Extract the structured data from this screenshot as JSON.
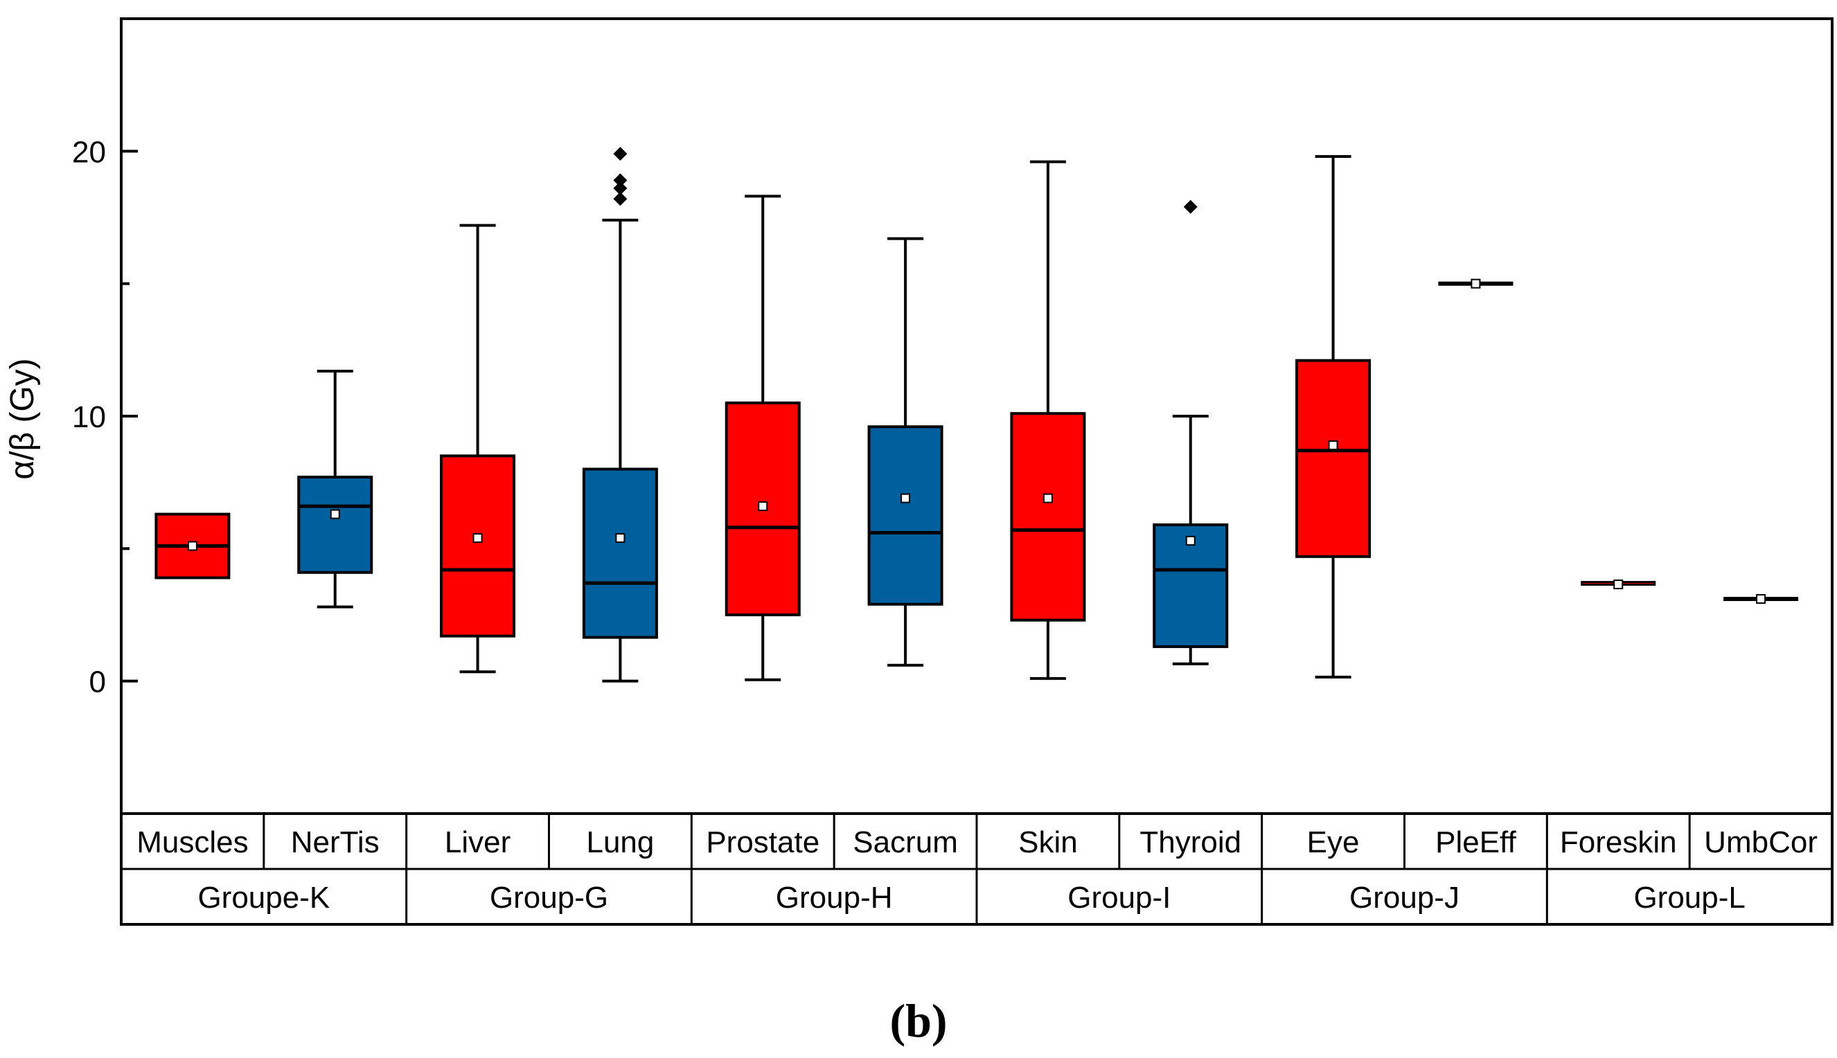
{
  "chart_data": {
    "type": "box",
    "title": "",
    "panel_label": "(b)",
    "ylabel": "α/β (Gy)",
    "xlabel": "",
    "ylim": [
      -5,
      25
    ],
    "yticks": [
      0,
      10,
      20
    ],
    "colors": {
      "red": "#ff0000",
      "blue": "#00609e",
      "outline": "#000000"
    },
    "groups": [
      {
        "name": "Groupe-K",
        "members": [
          "Muscles",
          "NerTis"
        ]
      },
      {
        "name": "Group-G",
        "members": [
          "Liver",
          "Lung"
        ]
      },
      {
        "name": "Group-H",
        "members": [
          "Prostate",
          "Sacrum"
        ]
      },
      {
        "name": "Group-I",
        "members": [
          "Skin",
          "Thyroid"
        ]
      },
      {
        "name": "Group-J",
        "members": [
          "Eye",
          "PleEff"
        ]
      },
      {
        "name": "Group-L",
        "members": [
          "Foreskin",
          "UmbCor"
        ]
      }
    ],
    "categories": [
      "Muscles",
      "NerTis",
      "Liver",
      "Lung",
      "Prostate",
      "Sacrum",
      "Skin",
      "Thyroid",
      "Eye",
      "PleEff",
      "Foreskin",
      "UmbCor"
    ],
    "series": [
      {
        "name": "Muscles",
        "color": "red",
        "min": 3.9,
        "q1": 3.9,
        "median": 5.1,
        "q3": 6.3,
        "max": 6.3,
        "mean": 5.1,
        "outliers": []
      },
      {
        "name": "NerTis",
        "color": "blue",
        "min": 2.8,
        "q1": 4.1,
        "median": 6.6,
        "q3": 7.7,
        "max": 11.7,
        "mean": 6.3,
        "outliers": []
      },
      {
        "name": "Liver",
        "color": "red",
        "min": 0.35,
        "q1": 1.7,
        "median": 4.2,
        "q3": 8.5,
        "max": 17.2,
        "mean": 5.4,
        "outliers": []
      },
      {
        "name": "Lung",
        "color": "blue",
        "min": 0.0,
        "q1": 1.65,
        "median": 3.7,
        "q3": 8.0,
        "max": 17.4,
        "mean": 5.4,
        "outliers": [
          18.2,
          18.6,
          18.9,
          19.9
        ]
      },
      {
        "name": "Prostate",
        "color": "red",
        "min": 0.05,
        "q1": 2.5,
        "median": 5.8,
        "q3": 10.5,
        "max": 18.3,
        "mean": 6.6,
        "outliers": []
      },
      {
        "name": "Sacrum",
        "color": "blue",
        "min": 0.6,
        "q1": 2.9,
        "median": 5.6,
        "q3": 9.6,
        "max": 16.7,
        "mean": 6.9,
        "outliers": []
      },
      {
        "name": "Skin",
        "color": "red",
        "min": 0.1,
        "q1": 2.3,
        "median": 5.7,
        "q3": 10.1,
        "max": 19.6,
        "mean": 6.9,
        "outliers": []
      },
      {
        "name": "Thyroid",
        "color": "blue",
        "min": 0.65,
        "q1": 1.3,
        "median": 4.2,
        "q3": 5.9,
        "max": 10.0,
        "mean": 5.3,
        "outliers": [
          17.9
        ]
      },
      {
        "name": "Eye",
        "color": "red",
        "min": 0.15,
        "q1": 4.7,
        "median": 8.7,
        "q3": 12.1,
        "max": 19.8,
        "mean": 8.9,
        "outliers": []
      },
      {
        "name": "PleEff",
        "color": "blue",
        "min": 15.0,
        "q1": 15.0,
        "median": 15.0,
        "q3": 15.0,
        "max": 15.0,
        "mean": 15.0,
        "outliers": []
      },
      {
        "name": "Foreskin",
        "color": "red",
        "min": 3.6,
        "q1": 3.6,
        "median": 3.65,
        "q3": 3.7,
        "max": 3.7,
        "mean": 3.65,
        "outliers": []
      },
      {
        "name": "UmbCor",
        "color": "blue",
        "min": 3.1,
        "q1": 3.1,
        "median": 3.1,
        "q3": 3.1,
        "max": 3.1,
        "mean": 3.1,
        "outliers": []
      }
    ]
  }
}
